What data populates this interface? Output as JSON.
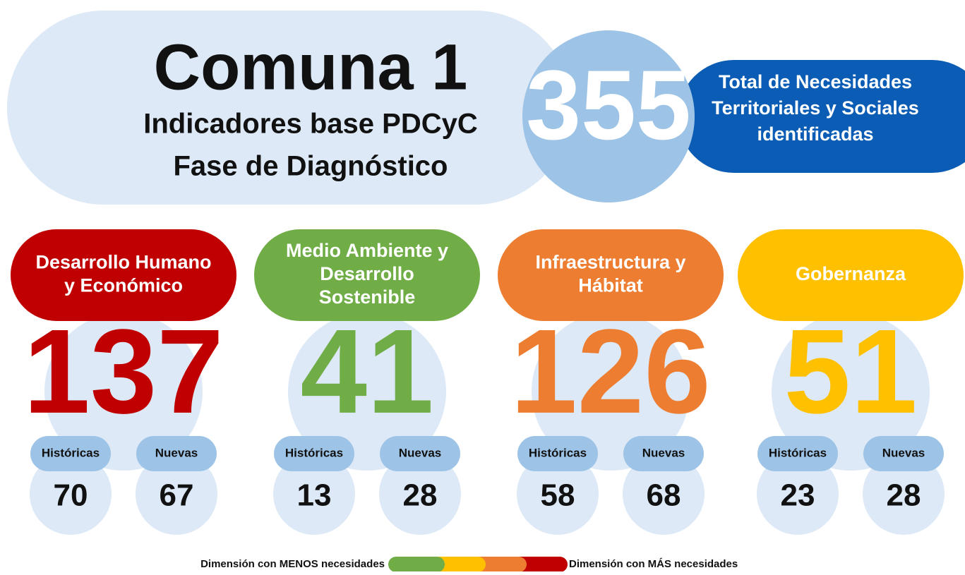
{
  "header": {
    "title": "Comuna 1",
    "subtitle": [
      "Indicadores base PDCyC",
      "Fase de Diagnóstico"
    ],
    "total": "355",
    "total_label": [
      "Total de Necesidades",
      "Territoriales y Sociales",
      "identificadas"
    ]
  },
  "dimensions": [
    {
      "name": [
        "Desarrollo Humano",
        "y Económico"
      ],
      "color": "#c00000",
      "total": "137",
      "historicas_label": "Históricas",
      "historicas": "70",
      "nuevas_label": "Nuevas",
      "nuevas": "67"
    },
    {
      "name": [
        "Medio Ambiente y",
        "Desarrollo",
        "Sostenible"
      ],
      "color": "#70ad47",
      "total": "41",
      "historicas_label": "Históricas",
      "historicas": "13",
      "nuevas_label": "Nuevas",
      "nuevas": "28"
    },
    {
      "name": [
        "Infraestructura y",
        "Hábitat"
      ],
      "color": "#ed7d31",
      "total": "126",
      "historicas_label": "Históricas",
      "historicas": "58",
      "nuevas_label": "Nuevas",
      "nuevas": "68"
    },
    {
      "name": [
        "Gobernanza"
      ],
      "color": "#ffc000",
      "total": "51",
      "historicas_label": "Históricas",
      "historicas": "23",
      "nuevas_label": "Nuevas",
      "nuevas": "28"
    }
  ],
  "legend": {
    "less": "Dimensión con MENOS necesidades",
    "more": "Dimensión con MÁS necesidades"
  }
}
